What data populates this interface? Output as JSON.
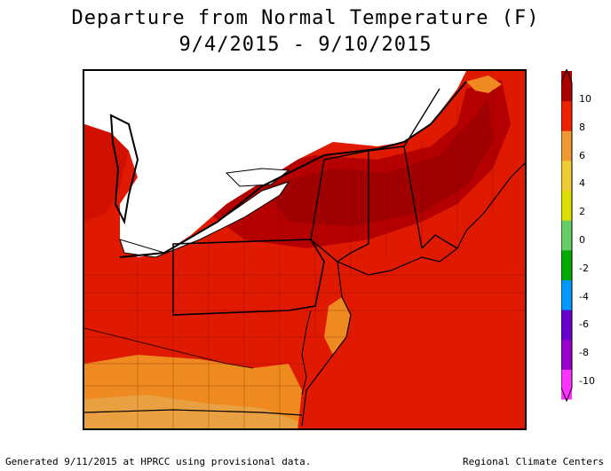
{
  "title": {
    "line1": "Departure from Normal Temperature (F)",
    "line2": "9/4/2015 - 9/10/2015"
  },
  "legend": {
    "ticks": [
      "10",
      "8",
      "6",
      "4",
      "2",
      "0",
      "-2",
      "-4",
      "-6",
      "-8",
      "-10"
    ],
    "colors": [
      "#ff33ff",
      "#9900cc",
      "#6600cc",
      "#0099ff",
      "#00aa00",
      "#66cc66",
      "#dddd00",
      "#eecc33",
      "#ee9933",
      "#ee2200",
      "#aa0000"
    ]
  },
  "map": {
    "colors": {
      "deep": "#a80000",
      "dark": "#c80000",
      "red": "#e01a00",
      "orange": "#f07a1a",
      "light_orange": "#e8a040",
      "lake": "#ffffff"
    }
  },
  "footer": {
    "left": "Generated 9/11/2015 at HPRCC using provisional data.",
    "right": "Regional Climate Centers"
  }
}
